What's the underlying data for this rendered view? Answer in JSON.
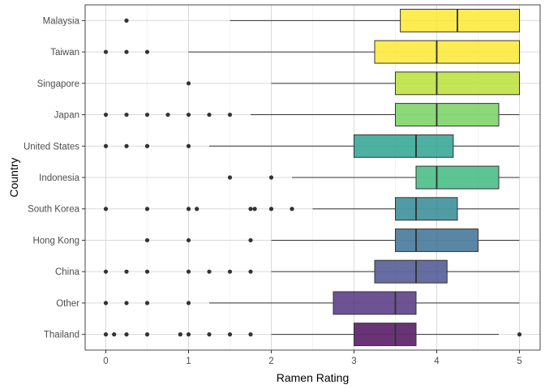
{
  "chart_data": {
    "type": "boxplot",
    "orientation": "horizontal",
    "title": "",
    "xlabel": "Ramen Rating",
    "ylabel": "Country",
    "xlim": [
      -0.25,
      5.25
    ],
    "xticks": [
      0,
      1,
      2,
      3,
      4,
      5
    ],
    "grid": true,
    "legend": "none",
    "categories": [
      "Thailand",
      "Other",
      "China",
      "Hong Kong",
      "South Korea",
      "Indonesia",
      "United States",
      "Japan",
      "Singapore",
      "Taiwan",
      "Malaysia"
    ],
    "boxes": [
      {
        "country": "Thailand",
        "lower_whisker": 2.0,
        "q1": 3.0,
        "median": 3.5,
        "q3": 3.75,
        "upper_whisker": 4.75,
        "outliers": [
          0.0,
          0.1,
          0.25,
          0.5,
          0.9,
          1.0,
          1.25,
          1.5,
          1.75,
          5.0
        ],
        "color": "#440154"
      },
      {
        "country": "Other",
        "lower_whisker": 1.25,
        "q1": 2.75,
        "median": 3.5,
        "q3": 3.75,
        "upper_whisker": 5.0,
        "outliers": [
          0.0,
          0.25,
          0.5,
          1.0
        ],
        "color": "#482878"
      },
      {
        "country": "China",
        "lower_whisker": 2.0,
        "q1": 3.25,
        "median": 3.75,
        "q3": 4.125,
        "upper_whisker": 5.0,
        "outliers": [
          0.0,
          0.25,
          0.5,
          1.0,
          1.25,
          1.5,
          1.75
        ],
        "color": "#3e4989"
      },
      {
        "country": "Hong Kong",
        "lower_whisker": 2.0,
        "q1": 3.5,
        "median": 3.75,
        "q3": 4.5,
        "upper_whisker": 5.0,
        "outliers": [
          0.5,
          1.0,
          1.75
        ],
        "color": "#31688e"
      },
      {
        "country": "South Korea",
        "lower_whisker": 2.5,
        "q1": 3.5,
        "median": 3.75,
        "q3": 4.25,
        "upper_whisker": 5.0,
        "outliers": [
          0.0,
          0.5,
          1.0,
          1.1,
          1.75,
          1.8,
          2.0,
          2.25
        ],
        "color": "#26828e"
      },
      {
        "country": "United States",
        "lower_whisker": 1.25,
        "q1": 3.0,
        "median": 3.75,
        "q3": 4.2,
        "upper_whisker": 5.0,
        "outliers": [
          0.0,
          0.25,
          0.5,
          1.0
        ],
        "color": "#1f9e89"
      },
      {
        "country": "Indonesia",
        "lower_whisker": 2.25,
        "q1": 3.75,
        "median": 4.0,
        "q3": 4.75,
        "upper_whisker": 5.0,
        "outliers": [
          1.5,
          2.0
        ],
        "color": "#35b779"
      },
      {
        "country": "Japan",
        "lower_whisker": 1.75,
        "q1": 3.5,
        "median": 4.0,
        "q3": 4.75,
        "upper_whisker": 5.0,
        "outliers": [
          0.0,
          0.25,
          0.5,
          0.75,
          1.0,
          1.25,
          1.5
        ],
        "color": "#6ece58"
      },
      {
        "country": "Singapore",
        "lower_whisker": 2.0,
        "q1": 3.5,
        "median": 4.0,
        "q3": 5.0,
        "upper_whisker": 5.0,
        "outliers": [
          1.0
        ],
        "color": "#b5de2b"
      },
      {
        "country": "Taiwan",
        "lower_whisker": 1.0,
        "q1": 3.25,
        "median": 4.0,
        "q3": 5.0,
        "upper_whisker": 5.0,
        "outliers": [
          0.0,
          0.25,
          0.5
        ],
        "color": "#fde725"
      },
      {
        "country": "Malaysia",
        "lower_whisker": 1.5,
        "q1": 3.56,
        "median": 4.25,
        "q3": 5.0,
        "upper_whisker": 5.0,
        "outliers": [
          0.25
        ],
        "color": "#fde725"
      }
    ]
  }
}
